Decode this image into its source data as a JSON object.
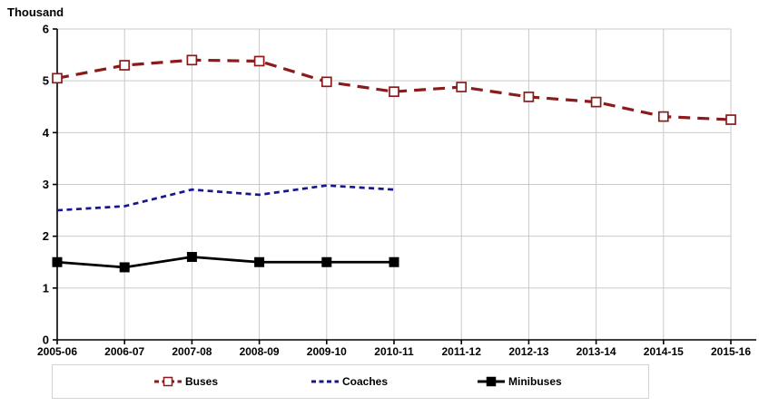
{
  "chart_data": {
    "type": "line",
    "title": "Thousand",
    "categories": [
      "2005-06",
      "2006-07",
      "2007-08",
      "2008-09",
      "2009-10",
      "2010-11",
      "2011-12",
      "2012-13",
      "2013-14",
      "2014-15",
      "2015-16"
    ],
    "series": [
      {
        "name": "Buses",
        "color": "#8b1a1a",
        "dash": "long-dash",
        "marker": "open-square",
        "values": [
          5.05,
          5.3,
          5.4,
          5.38,
          4.98,
          4.79,
          4.88,
          4.69,
          4.59,
          4.31,
          4.25
        ]
      },
      {
        "name": "Coaches",
        "color": "#16168f",
        "dash": "short-dash",
        "marker": "none",
        "values": [
          2.5,
          2.58,
          2.9,
          2.8,
          2.98,
          2.9,
          null,
          null,
          null,
          null,
          null
        ]
      },
      {
        "name": "Minibuses",
        "color": "#000000",
        "dash": "solid",
        "marker": "filled-square",
        "values": [
          1.5,
          1.4,
          1.6,
          1.5,
          1.5,
          1.5,
          null,
          null,
          null,
          null,
          null
        ]
      }
    ],
    "xlabel": "",
    "ylabel": "Thousand",
    "ylim": [
      0,
      6
    ],
    "ytick_step": 1,
    "grid": true,
    "gridline_color": "#c9c9c9",
    "axis_color": "#000000",
    "legend_position": "bottom"
  }
}
